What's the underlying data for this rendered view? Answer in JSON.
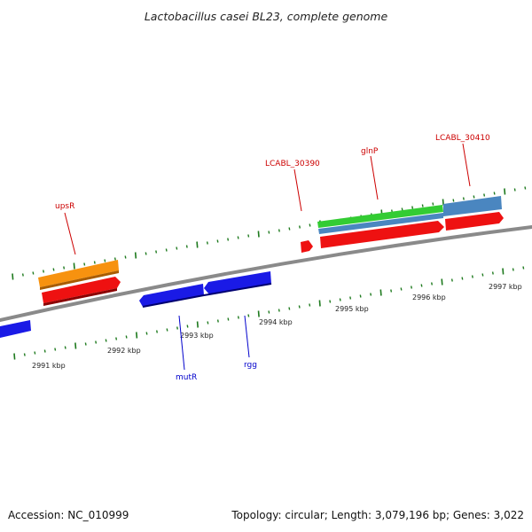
{
  "title": "Lactobacillus casei BL23, complete genome",
  "footer": {
    "accession": "Accession: NC_010999",
    "summary": "Topology: circular; Length: 3,079,196 bp; Genes: 3,022"
  },
  "scale": {
    "labels": [
      "2991 kbp",
      "2992 kbp",
      "2993 kbp",
      "2994 kbp",
      "2995 kbp",
      "2996 kbp",
      "2997 kbp"
    ]
  },
  "labels": {
    "upsR": "upsR",
    "LCABL_30390": "LCABL_30390",
    "glnP": "glnP",
    "LCABL_30410": "LCABL_30410",
    "mutR": "mutR",
    "rgg": "rgg"
  },
  "colors": {
    "backbone": "#8a8a8a",
    "tick": "#1e7a1e",
    "red_feature": "#ee1111",
    "blue_feature": "#1a1ae6",
    "orange_feature": "#f7920f",
    "green_feature": "#33cc33",
    "steelblue_feature": "#4a86c0",
    "forward_label": "#cc0000",
    "reverse_label": "#0000cc"
  }
}
